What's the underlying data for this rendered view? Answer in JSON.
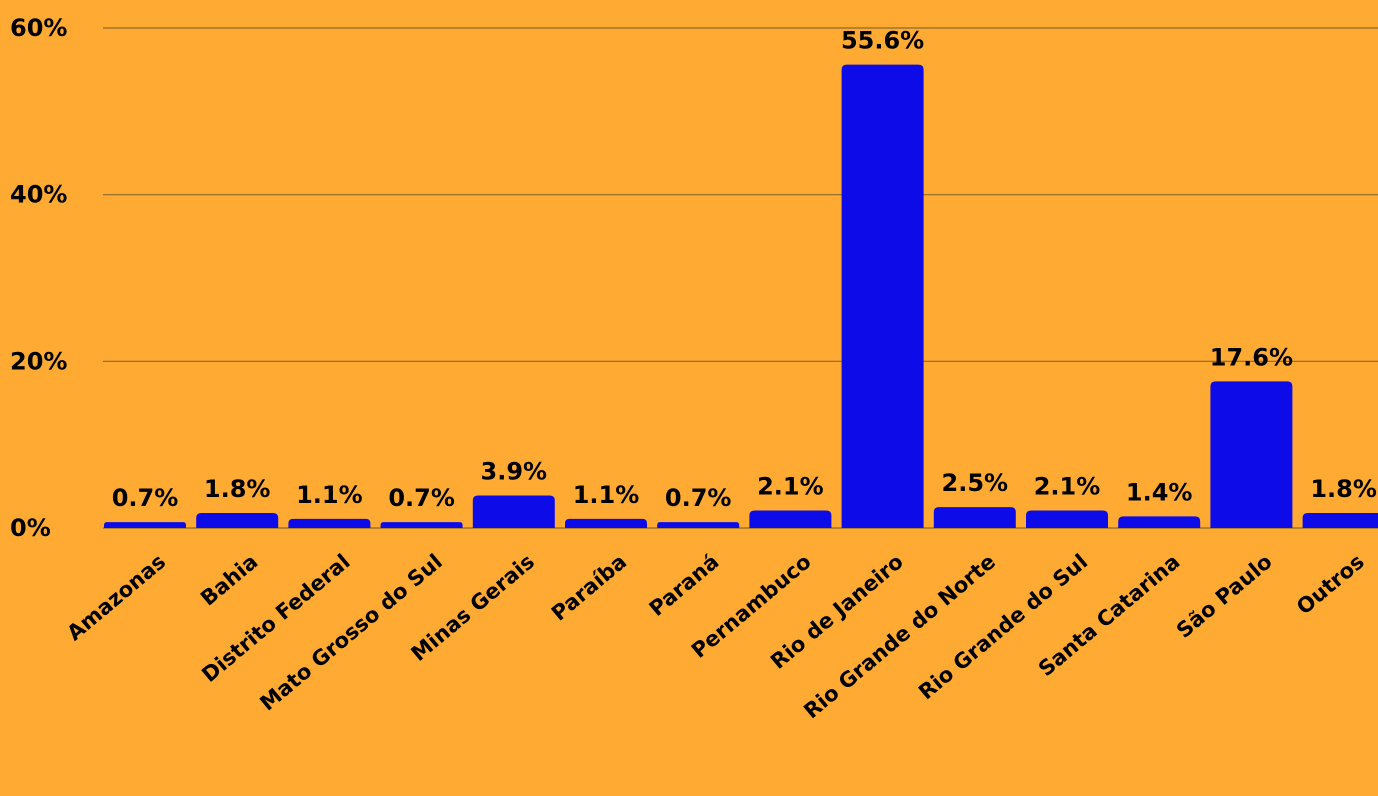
{
  "chart_data": {
    "type": "bar",
    "categories": [
      "Amazonas",
      "Bahia",
      "Distrito Federal",
      "Mato Grosso do Sul",
      "Minas Gerais",
      "Paraíba",
      "Paraná",
      "Pernambuco",
      "Rio de Janeiro",
      "Rio Grande do Norte",
      "Rio Grande do Sul",
      "Santa Catarina",
      "São Paulo",
      "Outros"
    ],
    "values": [
      0.7,
      1.8,
      1.1,
      0.7,
      3.9,
      1.1,
      0.7,
      2.1,
      55.6,
      2.5,
      2.1,
      1.4,
      17.6,
      1.8
    ],
    "data_labels": [
      "0.7%",
      "1.8%",
      "1.1%",
      "0.7%",
      "3.9%",
      "1.1%",
      "0.7%",
      "2.1%",
      "55.6%",
      "2.5%",
      "2.1%",
      "1.4%",
      "17.6%",
      "1.8%"
    ],
    "y_ticks": [
      {
        "value": 0,
        "label": "0%"
      },
      {
        "value": 20,
        "label": "20%"
      },
      {
        "value": 40,
        "label": "40%"
      },
      {
        "value": 60,
        "label": "60%"
      }
    ],
    "ylim": [
      0,
      60
    ],
    "grid": true,
    "legend": "none",
    "title": "",
    "xlabel": "",
    "ylabel": "",
    "colors": {
      "background": "#FFAB33",
      "bar": "#0D0CE8",
      "text": "#000000",
      "grid": "#8a6a2a"
    }
  }
}
